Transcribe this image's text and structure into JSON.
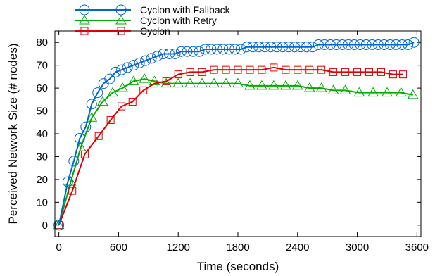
{
  "chart_data": {
    "type": "line",
    "xlabel": "Time (seconds)",
    "ylabel": "Perceived Network Size (# nodes)",
    "xlim": [
      -40,
      3640
    ],
    "ylim": [
      -5,
      85
    ],
    "xticks": [
      0,
      600,
      1200,
      1800,
      2400,
      3000,
      3600
    ],
    "yticks": [
      0,
      10,
      20,
      30,
      40,
      50,
      60,
      70,
      80
    ],
    "legend_position": "top-left",
    "series": [
      {
        "name": "Cyclon with Fallback",
        "color": "#0066cc",
        "marker": "circle",
        "x": [
          0,
          90,
          150,
          210,
          270,
          330,
          390,
          450,
          510,
          570,
          630,
          690,
          750,
          810,
          870,
          930,
          990,
          1050,
          1110,
          1170,
          1230,
          1290,
          1350,
          1410,
          1470,
          1530,
          1590,
          1650,
          1710,
          1770,
          1830,
          1890,
          1950,
          2010,
          2070,
          2130,
          2190,
          2250,
          2310,
          2370,
          2430,
          2490,
          2550,
          2610,
          2670,
          2730,
          2790,
          2850,
          2910,
          2970,
          3030,
          3090,
          3150,
          3210,
          3270,
          3330,
          3390,
          3450,
          3510,
          3570
        ],
        "values": [
          0,
          19,
          28,
          38,
          43,
          53,
          58,
          62,
          64,
          67,
          68,
          69,
          70,
          71,
          72,
          73,
          74,
          75,
          75,
          75,
          76,
          76,
          76,
          76,
          77,
          77,
          77,
          77,
          77,
          77,
          77,
          78,
          78,
          78,
          78,
          78,
          78,
          78,
          78,
          78,
          78,
          78,
          78,
          79,
          79,
          79,
          79,
          79,
          79,
          79,
          79,
          79,
          79,
          79,
          79,
          79,
          79,
          79,
          79,
          80
        ]
      },
      {
        "name": "Cyclon with Retry",
        "color": "#00aa00",
        "marker": "triangle",
        "x": [
          0,
          120,
          220,
          330,
          440,
          540,
          640,
          750,
          860,
          960,
          1080,
          1200,
          1320,
          1440,
          1560,
          1680,
          1800,
          1920,
          2040,
          2160,
          2280,
          2400,
          2520,
          2640,
          2760,
          2880,
          3020,
          3160,
          3300,
          3440,
          3560
        ],
        "values": [
          0,
          19,
          34,
          47,
          54,
          58,
          60,
          63,
          64,
          63,
          62,
          62,
          62,
          62,
          62,
          62,
          62,
          61,
          61,
          61,
          61,
          61,
          60,
          60,
          59,
          59,
          58,
          58,
          58,
          58,
          57
        ]
      },
      {
        "name": "Cyclon",
        "color": "#dd0000",
        "marker": "square",
        "x": [
          0,
          135,
          260,
          400,
          520,
          630,
          740,
          850,
          960,
          1080,
          1200,
          1320,
          1440,
          1560,
          1680,
          1800,
          1920,
          2040,
          2160,
          2280,
          2400,
          2520,
          2640,
          2760,
          2880,
          3000,
          3120,
          3240,
          3360,
          3460
        ],
        "values": [
          0,
          15,
          31,
          39,
          46,
          52,
          54,
          59,
          62,
          63,
          66,
          67,
          67,
          68,
          68,
          68,
          68,
          68,
          69,
          68,
          68,
          68,
          68,
          67,
          67,
          67,
          67,
          67,
          66,
          66
        ]
      }
    ]
  }
}
